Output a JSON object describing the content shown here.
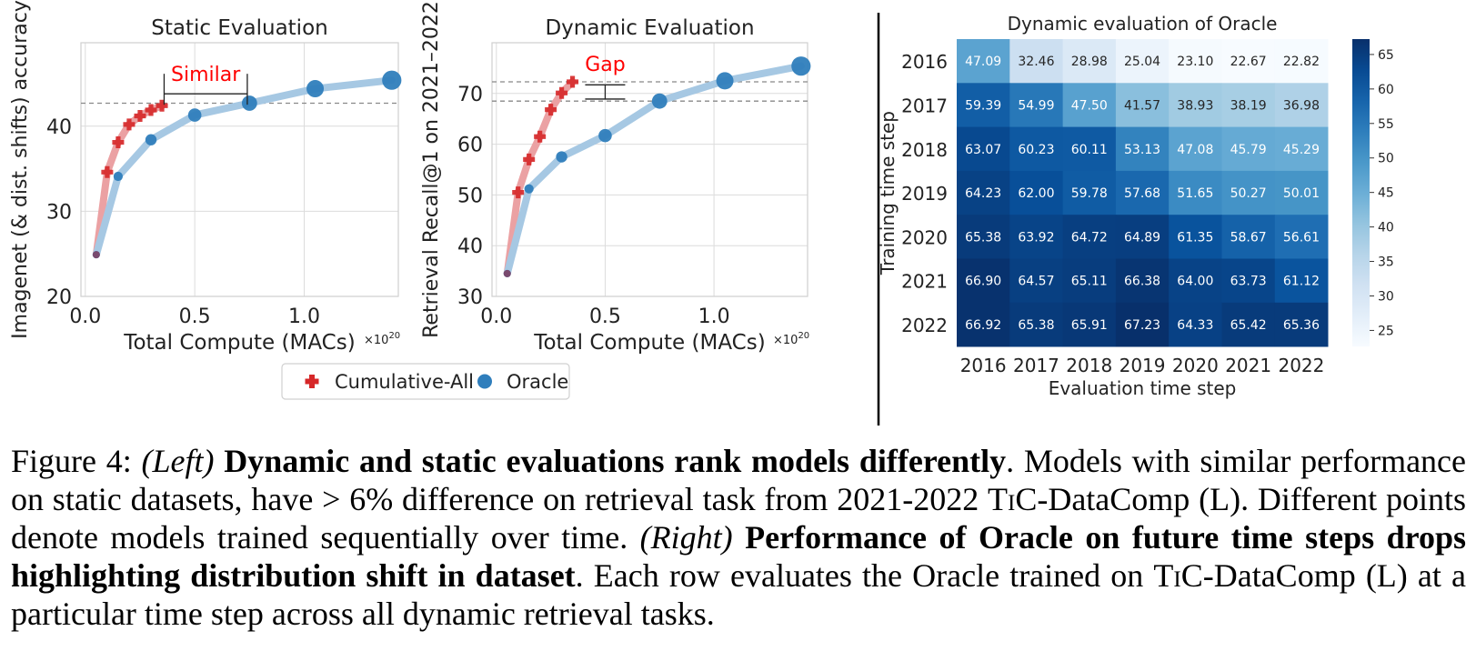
{
  "chart_data": [
    {
      "type": "line",
      "title": "Static Evaluation",
      "xlabel": "Total Compute (MACs)",
      "x_multiplier": "×10",
      "x_multiplier_exp": "20",
      "ylabel": "Imagenet (& dist. shifts) accuracy",
      "xlim": [
        -0.02,
        1.43
      ],
      "ylim": [
        20,
        49.8
      ],
      "xticks": [
        0.0,
        0.5,
        1.0
      ],
      "xtick_labels": [
        "0.0",
        "0.5",
        "1.0"
      ],
      "yticks": [
        20,
        30,
        40
      ],
      "ytick_labels": [
        "20",
        "30",
        "40"
      ],
      "grid": true,
      "series": [
        {
          "name": "Cumulative-All",
          "color": "#d62728",
          "marker": "plus",
          "x": [
            0.05,
            0.1,
            0.15,
            0.2,
            0.25,
            0.3,
            0.35
          ],
          "y": [
            24.9,
            34.6,
            38.1,
            40.2,
            41.2,
            41.9,
            42.4
          ]
        },
        {
          "name": "Oracle",
          "color": "#1f77b4",
          "marker": "circle",
          "x": [
            0.05,
            0.15,
            0.3,
            0.5,
            0.75,
            1.05,
            1.4
          ],
          "y": [
            24.9,
            34.1,
            38.4,
            41.3,
            42.7,
            44.4,
            45.4
          ]
        }
      ],
      "hlines": [
        42.7
      ],
      "annotation": {
        "text": "Similar",
        "x1": 0.36,
        "x2": 0.74,
        "y": 43.8,
        "color": "#ff0000"
      }
    },
    {
      "type": "line",
      "title": "Dynamic Evaluation",
      "xlabel": "Total Compute (MACs)",
      "x_multiplier": "×10",
      "x_multiplier_exp": "20",
      "ylabel": "Retrieval Recall@1 on 2021–2022",
      "xlim": [
        -0.02,
        1.43
      ],
      "ylim": [
        30,
        80
      ],
      "xticks": [
        0.0,
        0.5,
        1.0
      ],
      "xtick_labels": [
        "0.0",
        "0.5",
        "1.0"
      ],
      "yticks": [
        30,
        40,
        50,
        60,
        70
      ],
      "ytick_labels": [
        "30",
        "40",
        "50",
        "60",
        "70"
      ],
      "grid": true,
      "series": [
        {
          "name": "Cumulative-All",
          "color": "#d62728",
          "marker": "plus",
          "x": [
            0.05,
            0.1,
            0.15,
            0.2,
            0.25,
            0.3,
            0.35
          ],
          "y": [
            34.5,
            50.5,
            57.0,
            61.5,
            66.8,
            70.1,
            72.3
          ]
        },
        {
          "name": "Oracle",
          "color": "#1f77b4",
          "marker": "circle",
          "x": [
            0.05,
            0.15,
            0.3,
            0.5,
            0.75,
            1.05,
            1.4
          ],
          "y": [
            34.5,
            51.2,
            57.5,
            61.7,
            68.5,
            72.5,
            75.4
          ]
        }
      ],
      "hlines": [
        72.3,
        68.5
      ],
      "annotation": {
        "text": "Gap",
        "x": 0.5,
        "y1": 68.9,
        "y2": 71.7,
        "color": "#ff0000"
      }
    },
    {
      "type": "heatmap",
      "title": "Dynamic evaluation of Oracle",
      "xlabel": "Evaluation time step",
      "ylabel": "Training time step",
      "x_categories": [
        "2016",
        "2017",
        "2018",
        "2019",
        "2020",
        "2021",
        "2022"
      ],
      "y_categories": [
        "2016",
        "2017",
        "2018",
        "2019",
        "2020",
        "2021",
        "2022"
      ],
      "values": [
        [
          "47.09",
          "32.46",
          "28.98",
          "25.04",
          "23.10",
          "22.67",
          "22.82"
        ],
        [
          "59.39",
          "54.99",
          "47.50",
          "41.57",
          "38.93",
          "38.19",
          "36.98"
        ],
        [
          "63.07",
          "60.23",
          "60.11",
          "53.13",
          "47.08",
          "45.79",
          "45.29"
        ],
        [
          "64.23",
          "62.00",
          "59.78",
          "57.68",
          "51.65",
          "50.27",
          "50.01"
        ],
        [
          "65.38",
          "63.92",
          "64.72",
          "64.89",
          "61.35",
          "58.67",
          "56.61"
        ],
        [
          "66.90",
          "64.57",
          "65.11",
          "66.38",
          "64.00",
          "63.73",
          "61.12"
        ],
        [
          "66.92",
          "65.38",
          "65.91",
          "67.23",
          "64.33",
          "65.42",
          "65.36"
        ]
      ],
      "colorbar_range": [
        22.67,
        67.23
      ],
      "colorbar_ticks": [
        25,
        30,
        35,
        40,
        45,
        50,
        55,
        60,
        65
      ],
      "colorbar_tick_labels": [
        "25",
        "30",
        "35",
        "40",
        "45",
        "50",
        "55",
        "60",
        "65"
      ],
      "colormap": "Blues"
    }
  ],
  "legend": {
    "items": [
      {
        "label": "Cumulative-All",
        "color": "#d62728",
        "marker": "plus"
      },
      {
        "label": "Oracle",
        "color": "#1f77b4",
        "marker": "circle"
      }
    ]
  },
  "caption": {
    "prefix": "Figure 4: ",
    "left_tag": "(Left)",
    "left_bold": "Dynamic and static evaluations rank models differently",
    "left_rest_1": ". Models with similar performance on static datasets, have > 6% difference on retrieval task from 2021-2022 ",
    "tic_1": "TiC",
    "left_rest_2": "-DataComp (L). Different points denote models trained sequentially over time. ",
    "right_tag": "(Right)",
    "right_bold": "Performance of Oracle on future time steps drops highlighting distribution shift in dataset",
    "right_rest_1": ". Each row evaluates the Oracle trained on ",
    "tic_2": "TiC",
    "right_rest_2": "-DataComp (L) at a particular time step across all dynamic retrieval tasks."
  }
}
